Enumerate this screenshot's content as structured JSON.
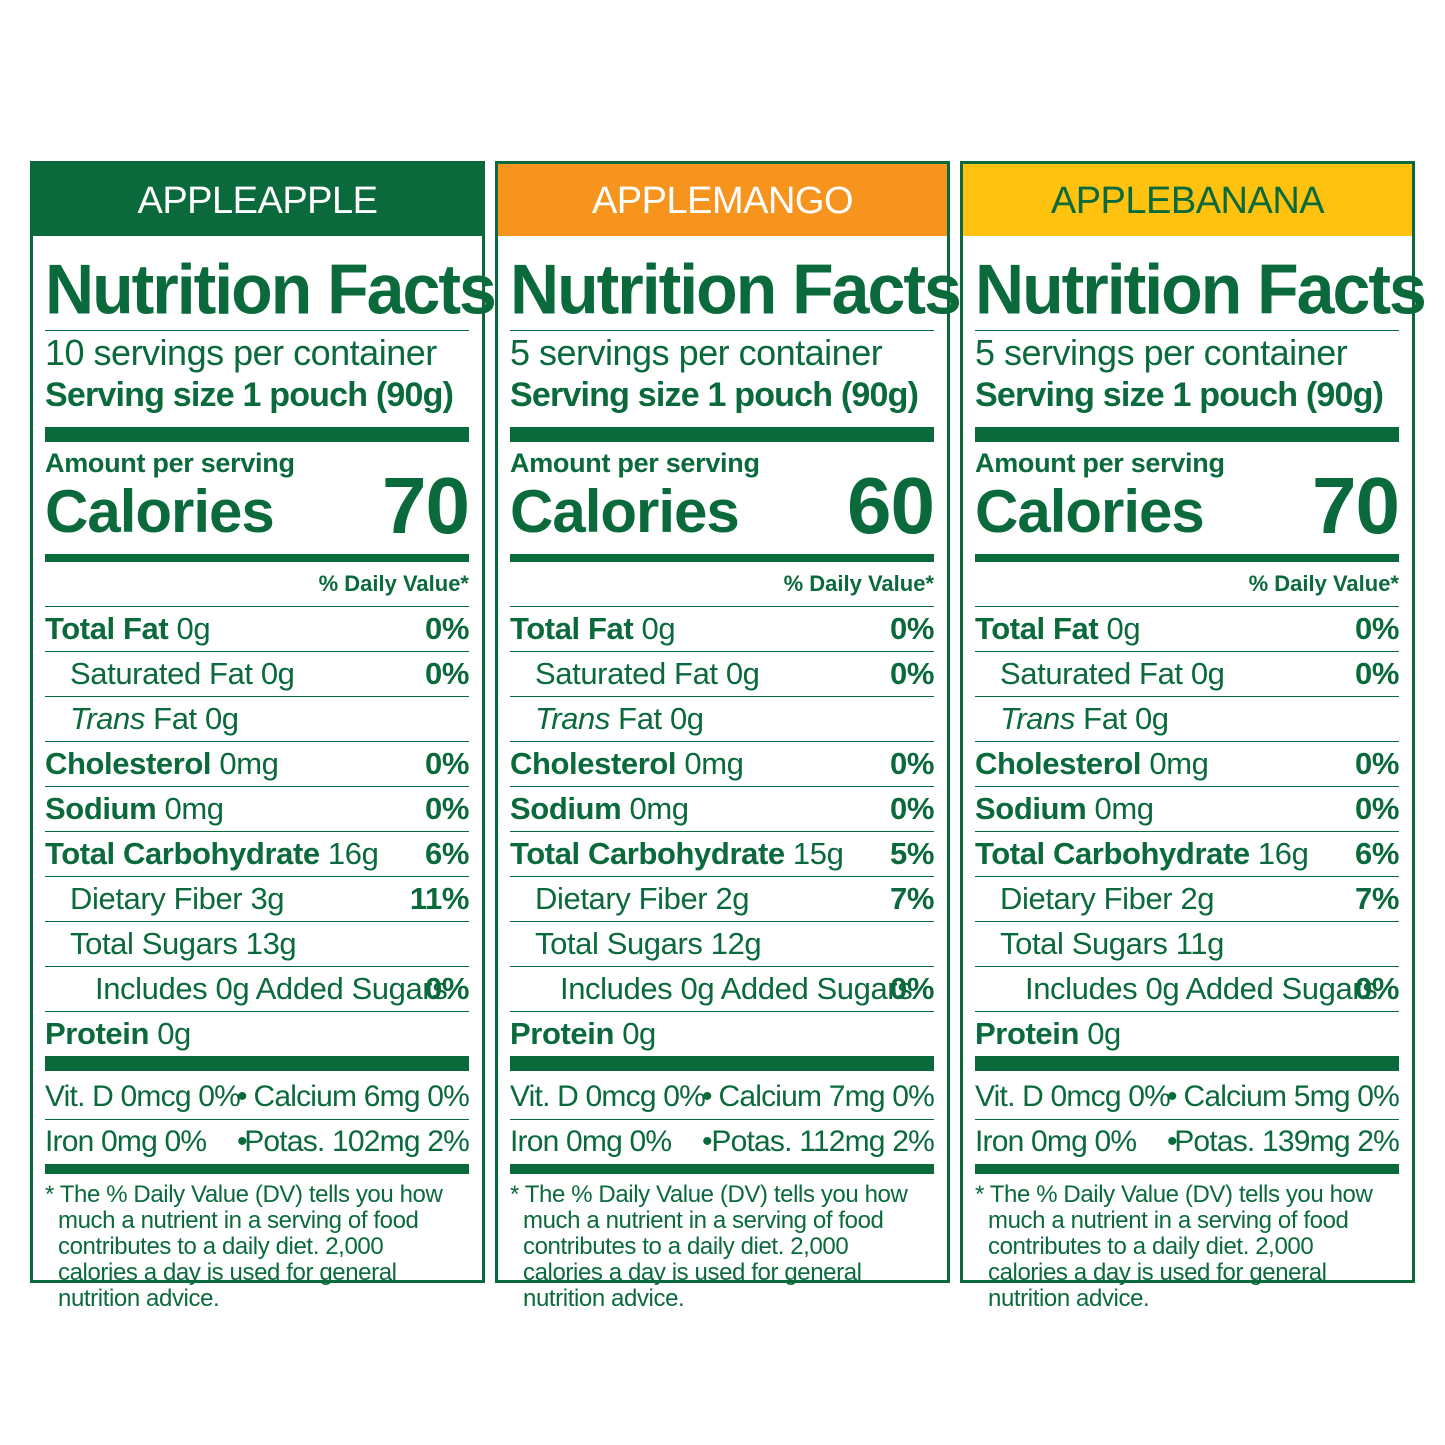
{
  "colors": {
    "label_green": "#0b6a3c",
    "applemango_orange": "#f7941d",
    "applebanana_yellow": "#fec20f"
  },
  "panels": [
    {
      "flavor": "APPLEAPPLE",
      "header_bg": "#0b6a3c",
      "header_text_color": "#ffffff",
      "title": "Nutrition Facts",
      "servings": "10 servings per container",
      "serving_size": "Serving size 1 pouch (90g)",
      "amount_label": "Amount per serving",
      "calories_label": "Calories",
      "calories": "70",
      "dv_header": "% Daily Value*",
      "rows": [
        {
          "bold": "Total Fat",
          "italic": "",
          "rest": " 0g",
          "dv": "0%",
          "indent": 0
        },
        {
          "bold": "",
          "italic": "",
          "rest": "Saturated Fat 0g",
          "dv": "0%",
          "indent": 1
        },
        {
          "bold": "",
          "italic": "Trans",
          "rest": " Fat 0g",
          "dv": "",
          "indent": 1
        },
        {
          "bold": "Cholesterol",
          "italic": "",
          "rest": " 0mg",
          "dv": "0%",
          "indent": 0
        },
        {
          "bold": "Sodium",
          "italic": "",
          "rest": " 0mg",
          "dv": "0%",
          "indent": 0
        },
        {
          "bold": "Total Carbohydrate",
          "italic": "",
          "rest": " 16g",
          "dv": "6%",
          "indent": 0
        },
        {
          "bold": "",
          "italic": "",
          "rest": "Dietary Fiber 3g",
          "dv": "11%",
          "indent": 1
        },
        {
          "bold": "",
          "italic": "",
          "rest": "Total Sugars 13g",
          "dv": "",
          "indent": 1
        },
        {
          "bold": "",
          "italic": "",
          "rest": "Includes 0g Added Sugars",
          "dv": "0%",
          "indent": 2
        },
        {
          "bold": "Protein",
          "italic": "",
          "rest": " 0g",
          "dv": "",
          "indent": 0
        }
      ],
      "vitamins": [
        {
          "left": "Vit. D 0mcg 0%",
          "sep": "•",
          "right": "Calcium 6mg 0%"
        },
        {
          "left": "Iron 0mg 0%",
          "sep": "•",
          "right": "Potas. 102mg 2%"
        }
      ],
      "footnote": "* The % Daily Value (DV) tells you how much a nutrient in a serving of food contributes to a daily diet. 2,000 calories a day is used for general nutrition advice."
    },
    {
      "flavor": "APPLEMANGO",
      "header_bg": "#f7941d",
      "header_text_color": "#ffffff",
      "title": "Nutrition Facts",
      "servings": "5 servings per container",
      "serving_size": "Serving size 1 pouch (90g)",
      "amount_label": "Amount per serving",
      "calories_label": "Calories",
      "calories": "60",
      "dv_header": "% Daily Value*",
      "rows": [
        {
          "bold": "Total Fat",
          "italic": "",
          "rest": " 0g",
          "dv": "0%",
          "indent": 0
        },
        {
          "bold": "",
          "italic": "",
          "rest": "Saturated Fat 0g",
          "dv": "0%",
          "indent": 1
        },
        {
          "bold": "",
          "italic": "Trans",
          "rest": " Fat 0g",
          "dv": "",
          "indent": 1
        },
        {
          "bold": "Cholesterol",
          "italic": "",
          "rest": " 0mg",
          "dv": "0%",
          "indent": 0
        },
        {
          "bold": "Sodium",
          "italic": "",
          "rest": " 0mg",
          "dv": "0%",
          "indent": 0
        },
        {
          "bold": "Total Carbohydrate",
          "italic": "",
          "rest": " 15g",
          "dv": "5%",
          "indent": 0
        },
        {
          "bold": "",
          "italic": "",
          "rest": "Dietary Fiber 2g",
          "dv": "7%",
          "indent": 1
        },
        {
          "bold": "",
          "italic": "",
          "rest": "Total Sugars 12g",
          "dv": "",
          "indent": 1
        },
        {
          "bold": "",
          "italic": "",
          "rest": "Includes 0g Added Sugars",
          "dv": "0%",
          "indent": 2
        },
        {
          "bold": "Protein",
          "italic": "",
          "rest": " 0g",
          "dv": "",
          "indent": 0
        }
      ],
      "vitamins": [
        {
          "left": "Vit. D 0mcg 0%",
          "sep": "•",
          "right": "Calcium 7mg 0%"
        },
        {
          "left": "Iron 0mg 0%",
          "sep": "•",
          "right": "Potas. 112mg 2%"
        }
      ],
      "footnote": "* The % Daily Value (DV) tells you how much a nutrient in a serving of food contributes to a daily diet. 2,000 calories a day is used for general nutrition advice."
    },
    {
      "flavor": "APPLEBANANA",
      "header_bg": "#fec20f",
      "header_text_color": "#0b6a3c",
      "title": "Nutrition Facts",
      "servings": "5 servings per container",
      "serving_size": "Serving size 1 pouch (90g)",
      "amount_label": "Amount per serving",
      "calories_label": "Calories",
      "calories": "70",
      "dv_header": "% Daily Value*",
      "rows": [
        {
          "bold": "Total Fat",
          "italic": "",
          "rest": " 0g",
          "dv": "0%",
          "indent": 0
        },
        {
          "bold": "",
          "italic": "",
          "rest": "Saturated Fat 0g",
          "dv": "0%",
          "indent": 1
        },
        {
          "bold": "",
          "italic": "Trans",
          "rest": " Fat 0g",
          "dv": "",
          "indent": 1
        },
        {
          "bold": "Cholesterol",
          "italic": "",
          "rest": " 0mg",
          "dv": "0%",
          "indent": 0
        },
        {
          "bold": "Sodium",
          "italic": "",
          "rest": " 0mg",
          "dv": "0%",
          "indent": 0
        },
        {
          "bold": "Total Carbohydrate",
          "italic": "",
          "rest": " 16g",
          "dv": "6%",
          "indent": 0
        },
        {
          "bold": "",
          "italic": "",
          "rest": "Dietary Fiber 2g",
          "dv": "7%",
          "indent": 1
        },
        {
          "bold": "",
          "italic": "",
          "rest": "Total Sugars 11g",
          "dv": "",
          "indent": 1
        },
        {
          "bold": "",
          "italic": "",
          "rest": "Includes 0g Added Sugars",
          "dv": "0%",
          "indent": 2
        },
        {
          "bold": "Protein",
          "italic": "",
          "rest": " 0g",
          "dv": "",
          "indent": 0
        }
      ],
      "vitamins": [
        {
          "left": "Vit. D 0mcg 0%",
          "sep": "•",
          "right": "Calcium 5mg 0%"
        },
        {
          "left": "Iron 0mg 0%",
          "sep": "•",
          "right": "Potas. 139mg 2%"
        }
      ],
      "footnote": "* The % Daily Value (DV) tells you how much a nutrient in a serving of food contributes to a daily diet. 2,000 calories a day is used for general nutrition advice."
    }
  ]
}
